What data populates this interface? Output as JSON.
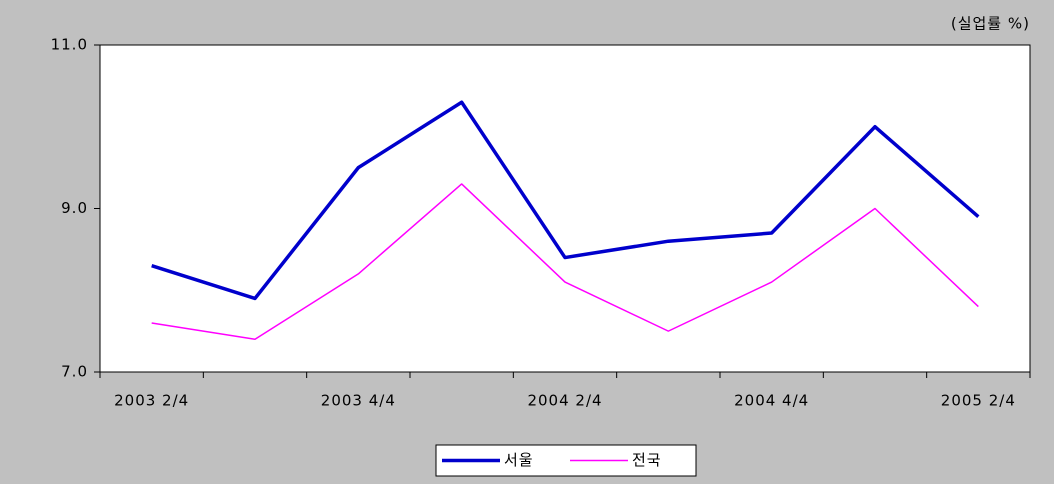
{
  "chart_data": {
    "type": "line",
    "annotation": "(실업률 %)",
    "categories": [
      "2003 2/4",
      null,
      "2003 4/4",
      null,
      "2004 2/4",
      null,
      "2004 4/4",
      null,
      "2005 2/4"
    ],
    "series": [
      {
        "name": "서울",
        "color": "#0000cc",
        "values": [
          8.3,
          7.9,
          9.5,
          10.3,
          8.4,
          8.6,
          8.7,
          10.0,
          8.9
        ]
      },
      {
        "name": "전국",
        "color": "#ff00ff",
        "values": [
          7.6,
          7.4,
          8.2,
          9.3,
          8.1,
          7.5,
          8.1,
          9.0,
          7.8
        ]
      }
    ],
    "ylim": [
      7,
      11
    ],
    "yticks": [
      {
        "value": 7,
        "label": "7.0"
      },
      {
        "value": 9,
        "label": "9.0"
      },
      {
        "value": 11,
        "label": "11.0"
      }
    ],
    "grid": false,
    "legend": "bottom"
  }
}
